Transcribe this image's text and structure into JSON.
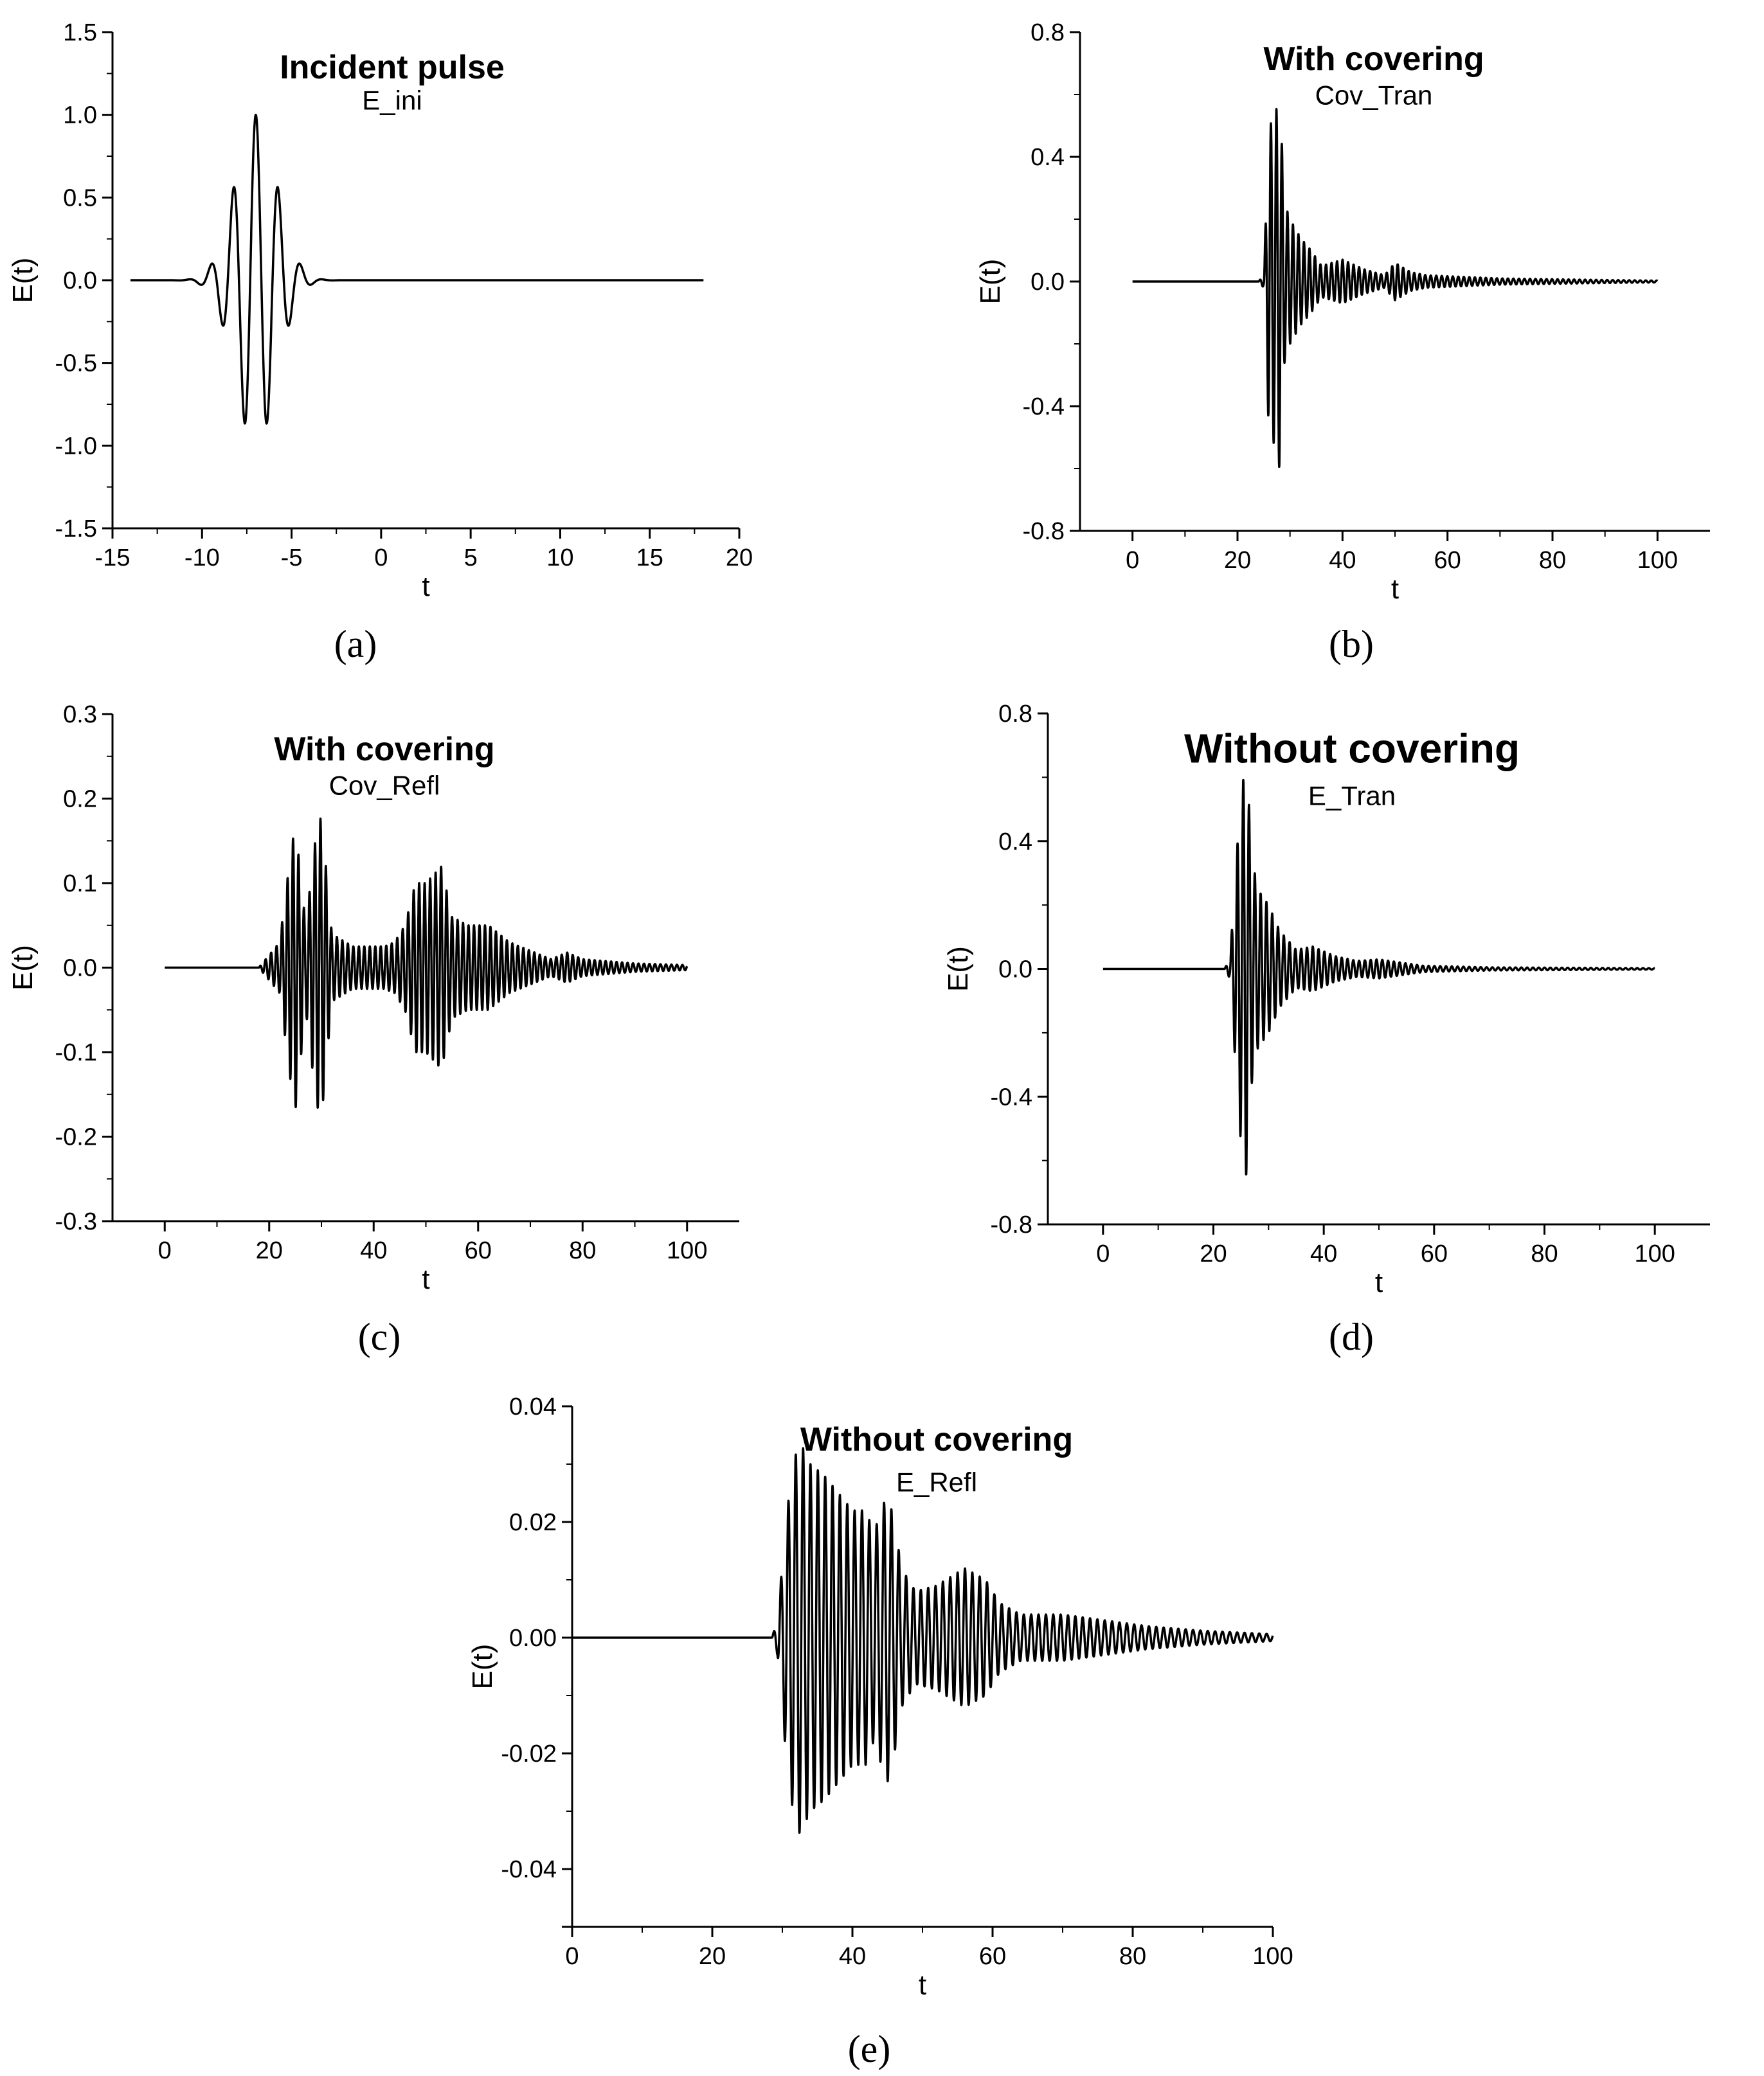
{
  "chart_data": [
    {
      "type": "line",
      "panel": "(a)",
      "title": "Incident pulse",
      "subtitle": "E_ini",
      "xlabel": "t",
      "ylabel": "E(t)",
      "xlim": [
        -15,
        20
      ],
      "ylim": [
        -1.5,
        1.5
      ],
      "xticks": [
        -15,
        -10,
        -5,
        0,
        5,
        10,
        15,
        20
      ],
      "yticks": [
        -1.5,
        -1.0,
        -0.5,
        0.0,
        0.5,
        1.0,
        1.5
      ],
      "xtick_labels": [
        "-15",
        "-10",
        "-5",
        "0",
        "5",
        "10",
        "15",
        "20"
      ],
      "ytick_labels": [
        "-1.5",
        "-1.0",
        "-0.5",
        "0.0",
        "0.5",
        "1.0",
        "1.5"
      ],
      "x_range": [
        -14,
        18
      ],
      "signal": {
        "onset": -10.5,
        "peaks": [
          [
            -9.5,
            -0.02
          ],
          [
            -9.0,
            0.05
          ],
          [
            -8.5,
            -0.18
          ],
          [
            -8.1,
            0.47
          ],
          [
            -7.6,
            -0.83
          ],
          [
            -7.0,
            1.0
          ],
          [
            -6.4,
            -0.83
          ],
          [
            -5.9,
            0.47
          ],
          [
            -5.4,
            -0.18
          ],
          [
            -4.9,
            0.05
          ],
          [
            -4.4,
            -0.02
          ]
        ]
      }
    },
    {
      "type": "line",
      "panel": "(b)",
      "title": "With covering",
      "subtitle": "Cov_Tran",
      "xlabel": "t",
      "ylabel": "E(t)",
      "xlim": [
        -10,
        110
      ],
      "ylim": [
        -0.8,
        0.8
      ],
      "xticks": [
        0,
        20,
        40,
        60,
        80,
        100
      ],
      "yticks": [
        -0.8,
        -0.4,
        0.0,
        0.4,
        0.8
      ],
      "xtick_labels": [
        "0",
        "20",
        "40",
        "60",
        "80",
        "100"
      ],
      "ytick_labels": [
        "-0.8",
        "-0.4",
        "0.0",
        "0.4",
        "0.8"
      ],
      "x_range": [
        0,
        100
      ],
      "signal": {
        "onset": 24,
        "period": 1.05,
        "peaks": [
          [
            24,
            0.0
          ],
          [
            25,
            0.02
          ],
          [
            26,
            0.5
          ],
          [
            27,
            0.52
          ],
          [
            28,
            0.6
          ],
          [
            29,
            0.25
          ],
          [
            30,
            0.2
          ],
          [
            32,
            0.14
          ],
          [
            34,
            0.1
          ],
          [
            36,
            0.05
          ],
          [
            40,
            0.07
          ],
          [
            44,
            0.04
          ],
          [
            48,
            0.02
          ],
          [
            50,
            0.06
          ],
          [
            53,
            0.03
          ],
          [
            56,
            0.02
          ],
          [
            70,
            0.01
          ],
          [
            90,
            0.005
          ],
          [
            100,
            0.003
          ]
        ]
      }
    },
    {
      "type": "line",
      "panel": "(c)",
      "title": "With covering",
      "subtitle": "Cov_Refl",
      "xlabel": "t",
      "ylabel": "E(t)",
      "xlim": [
        -10,
        110
      ],
      "ylim": [
        -0.3,
        0.3
      ],
      "xticks": [
        0,
        20,
        40,
        60,
        80,
        100
      ],
      "yticks": [
        -0.3,
        -0.2,
        -0.1,
        0.0,
        0.1,
        0.2,
        0.3
      ],
      "xtick_labels": [
        "0",
        "20",
        "40",
        "60",
        "80",
        "100"
      ],
      "ytick_labels": [
        "-0.3",
        "-0.2",
        "-0.1",
        "0.0",
        "0.1",
        "0.2",
        "0.3"
      ],
      "x_range": [
        0,
        100
      ],
      "signal": {
        "onset": 18,
        "period": 1.05,
        "peaks": [
          [
            18,
            0.0
          ],
          [
            20,
            0.015
          ],
          [
            22,
            0.03
          ],
          [
            24,
            0.13
          ],
          [
            25,
            0.17
          ],
          [
            27,
            0.05
          ],
          [
            29,
            0.16
          ],
          [
            30,
            0.18
          ],
          [
            32,
            0.04
          ],
          [
            36,
            0.025
          ],
          [
            42,
            0.025
          ],
          [
            44,
            0.03
          ],
          [
            46,
            0.05
          ],
          [
            48,
            0.1
          ],
          [
            50,
            0.1
          ],
          [
            53,
            0.12
          ],
          [
            55,
            0.06
          ],
          [
            58,
            0.05
          ],
          [
            62,
            0.05
          ],
          [
            66,
            0.03
          ],
          [
            70,
            0.02
          ],
          [
            74,
            0.01
          ],
          [
            77,
            0.018
          ],
          [
            80,
            0.01
          ],
          [
            90,
            0.005
          ],
          [
            100,
            0.003
          ]
        ]
      }
    },
    {
      "type": "line",
      "panel": "(d)",
      "title": "Without covering",
      "subtitle": "E_Tran",
      "xlabel": "t",
      "ylabel": "E(t)",
      "xlim": [
        -10,
        110
      ],
      "ylim": [
        -0.8,
        0.8
      ],
      "xticks": [
        0,
        20,
        40,
        60,
        80,
        100
      ],
      "yticks": [
        -0.8,
        -0.4,
        0.0,
        0.4,
        0.8
      ],
      "xtick_labels": [
        "0",
        "20",
        "40",
        "60",
        "80",
        "100"
      ],
      "ytick_labels": [
        "-0.8",
        "-0.4",
        "0.0",
        "0.4",
        "0.8"
      ],
      "x_range": [
        0,
        100
      ],
      "signal": {
        "onset": 22,
        "period": 1.05,
        "peaks": [
          [
            22,
            0.0
          ],
          [
            23,
            0.03
          ],
          [
            24,
            0.3
          ],
          [
            25,
            0.55
          ],
          [
            26,
            0.65
          ],
          [
            27,
            0.35
          ],
          [
            28,
            0.25
          ],
          [
            30,
            0.2
          ],
          [
            32,
            0.12
          ],
          [
            35,
            0.06
          ],
          [
            38,
            0.07
          ],
          [
            42,
            0.04
          ],
          [
            46,
            0.025
          ],
          [
            50,
            0.03
          ],
          [
            54,
            0.02
          ],
          [
            58,
            0.01
          ],
          [
            70,
            0.005
          ],
          [
            100,
            0.002
          ]
        ]
      }
    },
    {
      "type": "line",
      "panel": "(e)",
      "title": "Without covering",
      "subtitle": "E_Refl",
      "xlabel": "t",
      "ylabel": "E(t)",
      "xlim": [
        0,
        100
      ],
      "ylim": [
        -0.05,
        0.04
      ],
      "xticks": [
        0,
        20,
        40,
        60,
        80,
        100
      ],
      "yticks": [
        -0.04,
        -0.02,
        0.0,
        0.02,
        0.04
      ],
      "xtick_labels": [
        "0",
        "20",
        "40",
        "60",
        "80",
        "100"
      ],
      "ytick_labels": [
        "-0.04",
        "-0.02",
        "0.00",
        "0.02",
        "0.04"
      ],
      "x_range": [
        0,
        100
      ],
      "signal": {
        "onset": 28.5,
        "period": 1.05,
        "peaks": [
          [
            28.5,
            0.0
          ],
          [
            29.3,
            0.003
          ],
          [
            30.5,
            0.02
          ],
          [
            31.5,
            0.03
          ],
          [
            32.5,
            0.034
          ],
          [
            34,
            0.03
          ],
          [
            36,
            0.028
          ],
          [
            38,
            0.025
          ],
          [
            40,
            0.022
          ],
          [
            42,
            0.022
          ],
          [
            43,
            0.018
          ],
          [
            45,
            0.025
          ],
          [
            46,
            0.02
          ],
          [
            47,
            0.012
          ],
          [
            49,
            0.008
          ],
          [
            52,
            0.009
          ],
          [
            56,
            0.012
          ],
          [
            59,
            0.01
          ],
          [
            61,
            0.006
          ],
          [
            64,
            0.004
          ],
          [
            70,
            0.004
          ],
          [
            76,
            0.003
          ],
          [
            82,
            0.002
          ],
          [
            90,
            0.0012
          ],
          [
            100,
            0.0006
          ]
        ]
      }
    }
  ],
  "captions": {
    "a": "(a)",
    "b": "(b)",
    "c": "(c)",
    "d": "(d)",
    "e": "(e)"
  }
}
